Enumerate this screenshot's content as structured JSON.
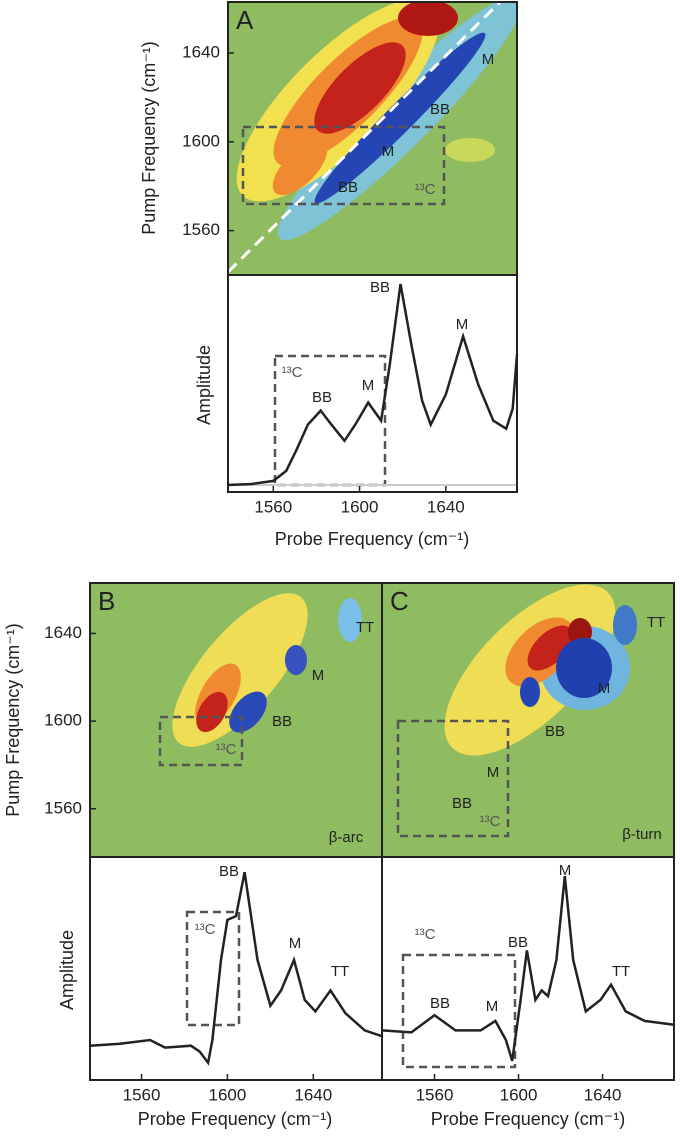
{
  "chart_data": [
    {
      "type": "contour",
      "panel_label": "A",
      "ylabel": "Pump Frequency (cm⁻¹)",
      "xlim": [
        1539,
        1673
      ],
      "ylim": [
        1540,
        1663
      ],
      "yticks": [
        1560,
        1600,
        1640
      ],
      "annotations": [
        "M",
        "BB",
        "M",
        "BB",
        "¹³C"
      ]
    },
    {
      "type": "line",
      "xlabel": "Probe Frequency (cm⁻¹)",
      "ylabel": "Amplitude",
      "xlim": [
        1539,
        1673
      ],
      "ylim": [
        -0.035,
        1.045
      ],
      "xticks": [
        1560,
        1600,
        1640
      ],
      "color": "#222222",
      "x": [
        1539,
        1550,
        1560,
        1566,
        1571,
        1576,
        1582,
        1587,
        1593,
        1598,
        1604,
        1610,
        1614,
        1619,
        1624,
        1629,
        1633,
        1640,
        1648,
        1655,
        1662,
        1668,
        1671,
        1673
      ],
      "values": [
        0,
        0.005,
        0.02,
        0.07,
        0.18,
        0.3,
        0.37,
        0.3,
        0.22,
        0.3,
        0.41,
        0.32,
        0.6,
        1.0,
        0.7,
        0.42,
        0.3,
        0.45,
        0.74,
        0.5,
        0.32,
        0.28,
        0.38,
        0.65
      ],
      "annotations": [
        "BB",
        "M",
        "BB",
        "M",
        "¹³C"
      ]
    },
    {
      "type": "contour",
      "panel_label": "B",
      "ylabel": "Pump Frequency (cm⁻¹)",
      "xlim": [
        1536,
        1672
      ],
      "ylim": [
        1538,
        1663
      ],
      "yticks": [
        1560,
        1600,
        1640
      ],
      "annotations": [
        "TT",
        "M",
        "BB",
        "¹³C",
        "β-arc"
      ]
    },
    {
      "type": "contour",
      "panel_label": "C",
      "xlim": [
        1535,
        1674
      ],
      "ylim": [
        1538,
        1663
      ],
      "annotations": [
        "TT",
        "M",
        "BB",
        "M",
        "BB",
        "¹³C",
        "β-turn"
      ]
    },
    {
      "type": "line",
      "xlabel": "Probe Frequency (cm⁻¹)",
      "ylabel": "Amplitude",
      "xlim": [
        1536,
        1672
      ],
      "ylim": [
        -0.18,
        0.99
      ],
      "xticks": [
        1560,
        1600,
        1640
      ],
      "color": "#222222",
      "x": [
        1536,
        1550,
        1564,
        1571,
        1583,
        1587,
        1591,
        1593,
        1597,
        1600,
        1604,
        1608,
        1614,
        1620,
        1625,
        1631,
        1636,
        1641,
        1648,
        1655,
        1664,
        1672
      ],
      "values": [
        0,
        0.01,
        0.03,
        -0.01,
        0,
        -0.03,
        -0.09,
        0.03,
        0.45,
        0.66,
        0.68,
        0.91,
        0.45,
        0.21,
        0.29,
        0.45,
        0.24,
        0.18,
        0.29,
        0.17,
        0.08,
        0.05
      ],
      "annotations": [
        "BB",
        "M",
        "TT",
        "¹³C"
      ]
    },
    {
      "type": "line",
      "xlabel": "Probe Frequency (cm⁻¹)",
      "xlim": [
        1535,
        1674
      ],
      "ylim": [
        -0.18,
        0.99
      ],
      "xticks": [
        1560,
        1600,
        1640
      ],
      "color": "#222222",
      "x": [
        1535,
        1549,
        1560,
        1570,
        1582,
        1589,
        1594,
        1597,
        1601,
        1604,
        1608,
        1611,
        1614,
        1618,
        1622,
        1626,
        1632,
        1639,
        1644,
        1651,
        1660,
        1674
      ],
      "values": [
        0.08,
        0.07,
        0.16,
        0.08,
        0.08,
        0.13,
        0.03,
        -0.08,
        0.24,
        0.5,
        0.24,
        0.29,
        0.26,
        0.45,
        0.89,
        0.45,
        0.18,
        0.24,
        0.32,
        0.18,
        0.13,
        0.11
      ],
      "annotations": [
        "M",
        "BB",
        "TT",
        "BB",
        "M",
        "¹³C"
      ]
    }
  ]
}
